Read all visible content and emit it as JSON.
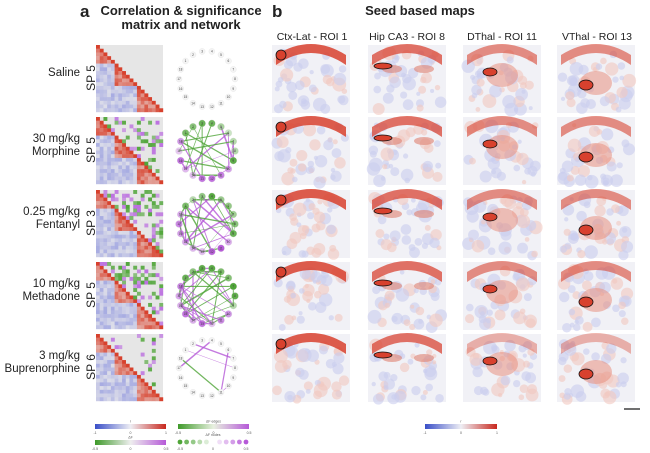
{
  "panel_a": {
    "letter": "a",
    "title_line1": "Correlation & significance",
    "title_line2": "matrix and network"
  },
  "panel_b": {
    "letter": "b",
    "title": "Seed based maps"
  },
  "rows": [
    {
      "label1": "",
      "label2": "Saline",
      "sp": "SP 5",
      "net": 0
    },
    {
      "label1": "30 mg/kg",
      "label2": "Morphine",
      "sp": "SP 5",
      "net": 2
    },
    {
      "label1": "0.25 mg/kg",
      "label2": "Fentanyl",
      "sp": "SP 3",
      "net": 3
    },
    {
      "label1": "10 mg/kg",
      "label2": "Methadone",
      "sp": "SP 5",
      "net": 3
    },
    {
      "label1": "3 mg/kg",
      "label2": "Buprenorphine",
      "sp": "SP 6",
      "net": 1
    }
  ],
  "columns": [
    "Ctx-Lat - ROI 1",
    "Hip CA3 - ROI 8",
    "DThal - ROI 11",
    "VThal - ROI 13"
  ],
  "node_labels": [
    "1",
    "2",
    "3",
    "4",
    "5",
    "6",
    "7",
    "8",
    "9",
    "10",
    "11",
    "12",
    "13",
    "14",
    "15",
    "16",
    "17",
    "18"
  ],
  "legends": {
    "r": {
      "label": "r",
      "ticks": [
        "-1",
        "0",
        "1"
      ]
    },
    "df": {
      "label": "ΔF",
      "ticks": [
        "-0.5",
        "0",
        "0.5"
      ]
    },
    "df_edges": {
      "label": "ΔF edges",
      "ticks": [
        "-0.5",
        "0",
        "0.5"
      ]
    },
    "df_nodes": {
      "label": "ΔF nodes",
      "ticks": [
        "-0.5",
        "0",
        "0.5"
      ]
    },
    "map_r": {
      "label": "r",
      "ticks": [
        "-1",
        "0",
        "1"
      ]
    }
  },
  "colors": {
    "red": "#c8281e",
    "blue": "#3a4fc8",
    "green": "#3f9a2a",
    "purple": "#b65ad8",
    "grey": "#e6e6e6"
  }
}
